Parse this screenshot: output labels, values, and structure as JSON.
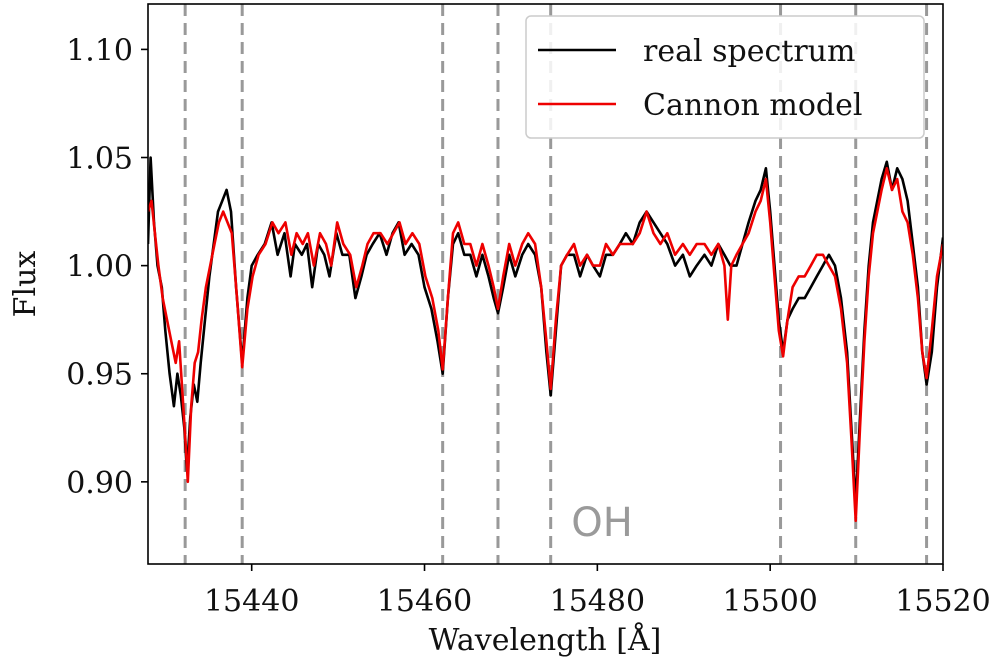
{
  "chart_data": {
    "type": "line",
    "title": "",
    "xlabel": "Wavelength [Å]",
    "ylabel": "Flux",
    "xlim": [
      15428,
      15520
    ],
    "ylim": [
      0.862,
      1.121
    ],
    "xticks": [
      15440,
      15460,
      15480,
      15500,
      15520
    ],
    "yticks": [
      0.9,
      0.95,
      1.0,
      1.05,
      1.1
    ],
    "xtick_labels": [
      "15440",
      "15460",
      "15480",
      "15500",
      "15520"
    ],
    "ytick_labels": [
      "0.90",
      "0.95",
      "1.00",
      "1.05",
      "1.10"
    ],
    "grid": false,
    "legend": {
      "position": "top-right",
      "entries": [
        "real spectrum",
        "Cannon model"
      ]
    },
    "annotation": "OH",
    "vlines_color": "#999999",
    "vlines": [
      15432.3,
      15438.9,
      15462.1,
      15468.5,
      15474.6,
      15501.2,
      15509.9,
      15518.1
    ],
    "series": [
      {
        "name": "real spectrum",
        "color": "#000000",
        "points": [
          [
            15428.0,
            1.01
          ],
          [
            15428.3,
            1.05
          ],
          [
            15428.7,
            1.02
          ],
          [
            15429.1,
            1.0
          ],
          [
            15429.6,
            0.99
          ],
          [
            15430.0,
            0.97
          ],
          [
            15430.5,
            0.95
          ],
          [
            15431.0,
            0.935
          ],
          [
            15431.4,
            0.95
          ],
          [
            15431.8,
            0.94
          ],
          [
            15432.2,
            0.925
          ],
          [
            15432.5,
            0.905
          ],
          [
            15432.9,
            0.93
          ],
          [
            15433.3,
            0.945
          ],
          [
            15433.7,
            0.937
          ],
          [
            15434.1,
            0.955
          ],
          [
            15434.6,
            0.975
          ],
          [
            15435.1,
            0.995
          ],
          [
            15435.6,
            1.01
          ],
          [
            15436.1,
            1.025
          ],
          [
            15436.6,
            1.03
          ],
          [
            15437.1,
            1.035
          ],
          [
            15437.6,
            1.025
          ],
          [
            15438.2,
            0.99
          ],
          [
            15438.9,
            0.955
          ],
          [
            15439.5,
            0.985
          ],
          [
            15440.0,
            1.0
          ],
          [
            15440.7,
            1.005
          ],
          [
            15441.5,
            1.01
          ],
          [
            15442.3,
            1.02
          ],
          [
            15443.0,
            1.005
          ],
          [
            15443.8,
            1.015
          ],
          [
            15444.5,
            0.995
          ],
          [
            15445.0,
            1.01
          ],
          [
            15445.8,
            1.005
          ],
          [
            15446.4,
            1.01
          ],
          [
            15447.0,
            0.99
          ],
          [
            15447.7,
            1.01
          ],
          [
            15448.4,
            1.005
          ],
          [
            15449.0,
            0.995
          ],
          [
            15449.8,
            1.015
          ],
          [
            15450.5,
            1.005
          ],
          [
            15451.3,
            1.005
          ],
          [
            15452.0,
            0.985
          ],
          [
            15452.7,
            0.995
          ],
          [
            15453.3,
            1.005
          ],
          [
            15454.0,
            1.01
          ],
          [
            15454.8,
            1.015
          ],
          [
            15455.6,
            1.005
          ],
          [
            15456.3,
            1.015
          ],
          [
            15457.0,
            1.02
          ],
          [
            15457.7,
            1.005
          ],
          [
            15458.5,
            1.01
          ],
          [
            15459.3,
            1.005
          ],
          [
            15460.0,
            0.99
          ],
          [
            15460.8,
            0.98
          ],
          [
            15461.5,
            0.965
          ],
          [
            15462.1,
            0.95
          ],
          [
            15462.7,
            0.985
          ],
          [
            15463.3,
            1.01
          ],
          [
            15463.9,
            1.015
          ],
          [
            15464.6,
            1.005
          ],
          [
            15465.3,
            1.005
          ],
          [
            15466.0,
            0.995
          ],
          [
            15466.7,
            1.005
          ],
          [
            15467.4,
            0.995
          ],
          [
            15468.0,
            0.985
          ],
          [
            15468.5,
            0.978
          ],
          [
            15469.1,
            0.99
          ],
          [
            15469.8,
            1.005
          ],
          [
            15470.5,
            0.995
          ],
          [
            15471.3,
            1.005
          ],
          [
            15472.0,
            1.01
          ],
          [
            15472.8,
            1.005
          ],
          [
            15473.5,
            0.99
          ],
          [
            15474.1,
            0.96
          ],
          [
            15474.6,
            0.94
          ],
          [
            15475.2,
            0.97
          ],
          [
            15475.8,
            1.0
          ],
          [
            15476.5,
            1.005
          ],
          [
            15477.3,
            1.005
          ],
          [
            15478.0,
            0.995
          ],
          [
            15478.8,
            1.005
          ],
          [
            15479.5,
            1.0
          ],
          [
            15480.3,
            0.995
          ],
          [
            15481.0,
            1.005
          ],
          [
            15481.8,
            1.005
          ],
          [
            15482.6,
            1.01
          ],
          [
            15483.3,
            1.015
          ],
          [
            15484.1,
            1.01
          ],
          [
            15484.9,
            1.02
          ],
          [
            15485.7,
            1.025
          ],
          [
            15486.5,
            1.02
          ],
          [
            15487.3,
            1.015
          ],
          [
            15488.1,
            1.01
          ],
          [
            15489.0,
            1.0
          ],
          [
            15489.9,
            1.005
          ],
          [
            15490.7,
            0.995
          ],
          [
            15491.5,
            1.0
          ],
          [
            15492.4,
            1.005
          ],
          [
            15493.2,
            1.0
          ],
          [
            15494.0,
            1.01
          ],
          [
            15494.7,
            1.005
          ],
          [
            15495.4,
            1.0
          ],
          [
            15496.1,
            1.0
          ],
          [
            15496.8,
            1.01
          ],
          [
            15497.5,
            1.02
          ],
          [
            15498.3,
            1.03
          ],
          [
            15498.9,
            1.035
          ],
          [
            15499.5,
            1.045
          ],
          [
            15500.0,
            1.025
          ],
          [
            15500.5,
            1.0
          ],
          [
            15501.0,
            0.975
          ],
          [
            15501.5,
            0.96
          ],
          [
            15502.0,
            0.975
          ],
          [
            15502.6,
            0.98
          ],
          [
            15503.3,
            0.985
          ],
          [
            15504.0,
            0.985
          ],
          [
            15504.7,
            0.99
          ],
          [
            15505.4,
            0.995
          ],
          [
            15506.1,
            1.0
          ],
          [
            15506.8,
            1.005
          ],
          [
            15507.5,
            1.0
          ],
          [
            15508.2,
            0.985
          ],
          [
            15508.9,
            0.96
          ],
          [
            15509.4,
            0.925
          ],
          [
            15509.9,
            0.89
          ],
          [
            15510.4,
            0.93
          ],
          [
            15510.9,
            0.97
          ],
          [
            15511.4,
            1.0
          ],
          [
            15511.9,
            1.02
          ],
          [
            15512.4,
            1.03
          ],
          [
            15512.9,
            1.04
          ],
          [
            15513.5,
            1.048
          ],
          [
            15514.1,
            1.035
          ],
          [
            15514.7,
            1.045
          ],
          [
            15515.3,
            1.04
          ],
          [
            15515.9,
            1.03
          ],
          [
            15516.5,
            1.01
          ],
          [
            15517.1,
            0.99
          ],
          [
            15517.6,
            0.96
          ],
          [
            15518.1,
            0.945
          ],
          [
            15518.7,
            0.96
          ],
          [
            15519.3,
            0.99
          ],
          [
            15520.0,
            1.013
          ]
        ]
      },
      {
        "name": "Cannon model",
        "color": "#ee0000",
        "points": [
          [
            15428.0,
            1.025
          ],
          [
            15428.4,
            1.03
          ],
          [
            15428.8,
            1.015
          ],
          [
            15429.2,
            1.0
          ],
          [
            15429.7,
            0.985
          ],
          [
            15430.2,
            0.975
          ],
          [
            15430.7,
            0.965
          ],
          [
            15431.2,
            0.955
          ],
          [
            15431.6,
            0.965
          ],
          [
            15432.0,
            0.94
          ],
          [
            15432.4,
            0.915
          ],
          [
            15432.6,
            0.9
          ],
          [
            15433.0,
            0.935
          ],
          [
            15433.4,
            0.955
          ],
          [
            15433.8,
            0.96
          ],
          [
            15434.2,
            0.975
          ],
          [
            15434.7,
            0.99
          ],
          [
            15435.2,
            1.0
          ],
          [
            15435.7,
            1.01
          ],
          [
            15436.2,
            1.02
          ],
          [
            15436.7,
            1.025
          ],
          [
            15437.2,
            1.02
          ],
          [
            15437.7,
            1.015
          ],
          [
            15438.3,
            0.985
          ],
          [
            15438.9,
            0.953
          ],
          [
            15439.5,
            0.98
          ],
          [
            15440.1,
            0.995
          ],
          [
            15440.8,
            1.005
          ],
          [
            15441.6,
            1.01
          ],
          [
            15442.4,
            1.02
          ],
          [
            15443.1,
            1.015
          ],
          [
            15443.9,
            1.02
          ],
          [
            15444.6,
            1.005
          ],
          [
            15445.2,
            1.015
          ],
          [
            15445.9,
            1.01
          ],
          [
            15446.5,
            1.015
          ],
          [
            15447.2,
            1.0
          ],
          [
            15447.9,
            1.015
          ],
          [
            15448.6,
            1.01
          ],
          [
            15449.2,
            1.0
          ],
          [
            15449.9,
            1.02
          ],
          [
            15450.6,
            1.01
          ],
          [
            15451.4,
            1.005
          ],
          [
            15452.1,
            0.99
          ],
          [
            15452.8,
            1.0
          ],
          [
            15453.4,
            1.01
          ],
          [
            15454.1,
            1.015
          ],
          [
            15454.9,
            1.015
          ],
          [
            15455.7,
            1.01
          ],
          [
            15456.4,
            1.015
          ],
          [
            15457.1,
            1.02
          ],
          [
            15457.8,
            1.01
          ],
          [
            15458.6,
            1.015
          ],
          [
            15459.4,
            1.01
          ],
          [
            15460.1,
            0.995
          ],
          [
            15460.9,
            0.985
          ],
          [
            15461.6,
            0.97
          ],
          [
            15462.1,
            0.952
          ],
          [
            15462.7,
            0.985
          ],
          [
            15463.3,
            1.015
          ],
          [
            15463.9,
            1.02
          ],
          [
            15464.6,
            1.01
          ],
          [
            15465.3,
            1.01
          ],
          [
            15466.0,
            1.0
          ],
          [
            15466.7,
            1.01
          ],
          [
            15467.4,
            1.0
          ],
          [
            15468.0,
            0.99
          ],
          [
            15468.5,
            0.98
          ],
          [
            15469.1,
            0.995
          ],
          [
            15469.8,
            1.01
          ],
          [
            15470.5,
            1.0
          ],
          [
            15471.3,
            1.01
          ],
          [
            15472.0,
            1.015
          ],
          [
            15472.8,
            1.01
          ],
          [
            15473.5,
            0.99
          ],
          [
            15474.1,
            0.965
          ],
          [
            15474.6,
            0.943
          ],
          [
            15475.2,
            0.975
          ],
          [
            15475.8,
            1.0
          ],
          [
            15476.5,
            1.005
          ],
          [
            15477.3,
            1.01
          ],
          [
            15478.0,
            1.0
          ],
          [
            15478.8,
            1.005
          ],
          [
            15479.5,
            1.0
          ],
          [
            15480.3,
            1.0
          ],
          [
            15481.0,
            1.01
          ],
          [
            15481.8,
            1.005
          ],
          [
            15482.6,
            1.01
          ],
          [
            15483.3,
            1.01
          ],
          [
            15484.1,
            1.01
          ],
          [
            15484.9,
            1.015
          ],
          [
            15485.7,
            1.025
          ],
          [
            15486.5,
            1.015
          ],
          [
            15487.3,
            1.01
          ],
          [
            15488.1,
            1.015
          ],
          [
            15489.0,
            1.005
          ],
          [
            15489.9,
            1.01
          ],
          [
            15490.7,
            1.005
          ],
          [
            15491.5,
            1.01
          ],
          [
            15492.4,
            1.01
          ],
          [
            15493.2,
            1.005
          ],
          [
            15494.0,
            1.01
          ],
          [
            15494.7,
            1.0
          ],
          [
            15495.1,
            0.975
          ],
          [
            15495.5,
            1.0
          ],
          [
            15496.1,
            1.005
          ],
          [
            15496.8,
            1.01
          ],
          [
            15497.5,
            1.015
          ],
          [
            15498.3,
            1.025
          ],
          [
            15498.9,
            1.03
          ],
          [
            15499.5,
            1.04
          ],
          [
            15500.0,
            1.02
          ],
          [
            15500.5,
            0.995
          ],
          [
            15501.0,
            0.97
          ],
          [
            15501.5,
            0.958
          ],
          [
            15502.0,
            0.975
          ],
          [
            15502.6,
            0.99
          ],
          [
            15503.3,
            0.995
          ],
          [
            15504.0,
            0.995
          ],
          [
            15504.7,
            1.0
          ],
          [
            15505.4,
            1.005
          ],
          [
            15506.1,
            1.005
          ],
          [
            15506.8,
            1.0
          ],
          [
            15507.5,
            0.995
          ],
          [
            15508.2,
            0.98
          ],
          [
            15508.9,
            0.955
          ],
          [
            15509.4,
            0.92
          ],
          [
            15509.9,
            0.882
          ],
          [
            15510.4,
            0.925
          ],
          [
            15510.9,
            0.965
          ],
          [
            15511.4,
            0.995
          ],
          [
            15511.9,
            1.015
          ],
          [
            15512.4,
            1.025
          ],
          [
            15512.9,
            1.035
          ],
          [
            15513.5,
            1.045
          ],
          [
            15514.1,
            1.035
          ],
          [
            15514.7,
            1.04
          ],
          [
            15515.3,
            1.025
          ],
          [
            15515.9,
            1.02
          ],
          [
            15516.5,
            1.005
          ],
          [
            15517.1,
            0.985
          ],
          [
            15517.6,
            0.96
          ],
          [
            15518.1,
            0.948
          ],
          [
            15518.7,
            0.97
          ],
          [
            15519.3,
            0.995
          ],
          [
            15520.0,
            1.01
          ]
        ]
      }
    ]
  }
}
